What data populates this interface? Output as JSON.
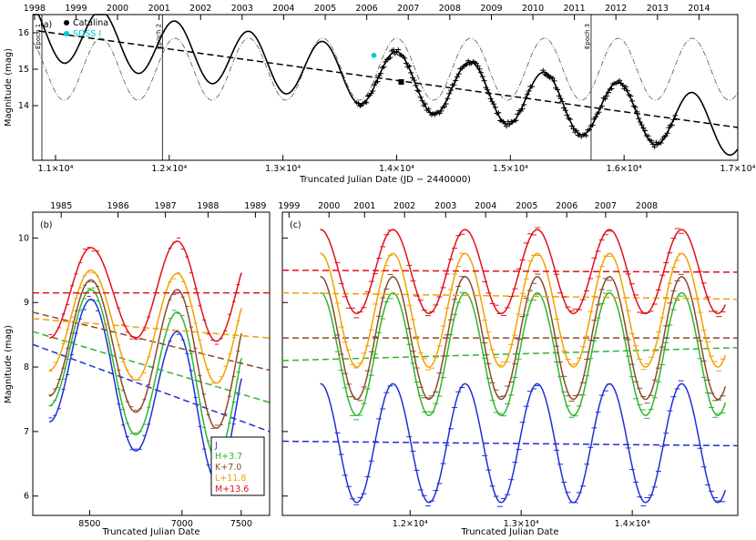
{
  "figure": {
    "colors": {
      "J": "#1f2fd6",
      "H": "#2fb52f",
      "K": "#8a4a2a",
      "L": "#f2a000",
      "M": "#e0101a",
      "catalina": "#000000",
      "sdss": "#00c8d8"
    }
  },
  "chart_data": [
    {
      "id": "a",
      "type": "line",
      "panel_label": "(a)",
      "xlabel": "Truncated Julian Date (JD − 2440000)",
      "ylabel": "Magnitude (mag)",
      "xlim": [
        10800,
        17000
      ],
      "ylim": [
        16.5,
        12.5
      ],
      "x_ticks": [
        {
          "value": 11000,
          "label": "1.1×10⁴"
        },
        {
          "value": 12000,
          "label": "1.2×10⁴"
        },
        {
          "value": 13000,
          "label": "1.3×10⁴"
        },
        {
          "value": 14000,
          "label": "1.4×10⁴"
        },
        {
          "value": 15000,
          "label": "1.5×10⁴"
        },
        {
          "value": 16000,
          "label": "1.6×10⁴"
        },
        {
          "value": 17000,
          "label": "1.7×10⁴"
        }
      ],
      "y_ticks": [
        {
          "value": 14,
          "label": "14"
        },
        {
          "value": 15,
          "label": "15"
        },
        {
          "value": 16,
          "label": "16"
        }
      ],
      "top_years": [
        {
          "year": "1998",
          "value": 10815
        },
        {
          "year": "1999",
          "value": 11180
        },
        {
          "year": "2000",
          "value": 11545
        },
        {
          "year": "2001",
          "value": 11911
        },
        {
          "year": "2002",
          "value": 12276
        },
        {
          "year": "2003",
          "value": 12641
        },
        {
          "year": "2004",
          "value": 13006
        },
        {
          "year": "2005",
          "value": 13372
        },
        {
          "year": "2006",
          "value": 13737
        },
        {
          "year": "2007",
          "value": 14102
        },
        {
          "year": "2008",
          "value": 14467
        },
        {
          "year": "2009",
          "value": 14833
        },
        {
          "year": "2010",
          "value": 15198
        },
        {
          "year": "2011",
          "value": 15563
        },
        {
          "year": "2012",
          "value": 15928
        },
        {
          "year": "2013",
          "value": 16294
        },
        {
          "year": "2014",
          "value": 16659
        }
      ],
      "epochs": [
        {
          "label": "Epoch 1",
          "value": 10880
        },
        {
          "label": "Epoch 2",
          "value": 11940
        },
        {
          "label": "Epoch 3",
          "value": 15710
        }
      ],
      "legend": [
        {
          "label": "Catalina",
          "color_key": "catalina"
        },
        {
          "label": "SDSS I",
          "color_key": "sdss"
        }
      ],
      "model": {
        "period_days": 650,
        "amplitude_mag": 0.75,
        "phase_day": 11400,
        "trend_start": [
          10850,
          16.05
        ],
        "trend_end": [
          17000,
          13.4
        ]
      },
      "sdss_point": {
        "x": 13800,
        "y": 15.38
      }
    },
    {
      "id": "b",
      "type": "line",
      "panel_label": "(b)",
      "xlabel": "Truncated Julian Date",
      "ylabel": "Magnitude (mag)",
      "xlim": [
        8050,
        7900
      ],
      "ylim": [
        10.4,
        5.7
      ],
      "x_ticks": [
        {
          "value": 8500,
          "label": "8500"
        },
        {
          "value": 7000,
          "label": "7000"
        },
        {
          "value": 7500,
          "label": "7500"
        }
      ],
      "y_ticks": [
        {
          "value": 6,
          "label": "6"
        },
        {
          "value": 7,
          "label": "7"
        },
        {
          "value": 8,
          "label": "8"
        },
        {
          "value": 9,
          "label": "9"
        },
        {
          "value": 10,
          "label": "10"
        }
      ],
      "top_years": [
        {
          "year": "1985",
          "value": 8250
        },
        {
          "year": "1986",
          "value": 8550
        },
        {
          "year": "1987",
          "value": 6870
        },
        {
          "year": "1988",
          "value": 7200
        },
        {
          "year": "1989",
          "value": 7580
        }
      ],
      "legend": [
        {
          "label": "J",
          "color_key": "J"
        },
        {
          "label": "H+3.7",
          "color_key": "H"
        },
        {
          "label": "K+7.0",
          "color_key": "K"
        },
        {
          "label": "L+11.8",
          "color_key": "L"
        },
        {
          "label": "M+13.6",
          "color_key": "M"
        }
      ],
      "series": [
        {
          "name": "J",
          "color_key": "J",
          "maxima": [
            7.15,
            6.7,
            6.25
          ],
          "minima": [
            9.05,
            8.55
          ],
          "trend": [
            8.35,
            7.0
          ]
        },
        {
          "name": "H+3.7",
          "color_key": "H",
          "maxima": [
            7.4,
            6.95,
            6.6
          ],
          "minima": [
            9.2,
            8.85
          ],
          "trend": [
            8.55,
            7.45
          ]
        },
        {
          "name": "K+7.0",
          "color_key": "K",
          "maxima": [
            7.55,
            7.3,
            7.05
          ],
          "minima": [
            9.35,
            9.2
          ],
          "trend": [
            8.85,
            7.95
          ]
        },
        {
          "name": "L+11.8",
          "color_key": "L",
          "maxima": [
            7.95,
            7.8,
            7.75
          ],
          "minima": [
            9.5,
            9.45
          ],
          "trend": [
            8.75,
            8.45
          ]
        },
        {
          "name": "M+13.6",
          "color_key": "M",
          "maxima": [
            8.45,
            8.45,
            8.4
          ],
          "minima": [
            9.85,
            9.95
          ],
          "trend": [
            9.15,
            9.15
          ]
        }
      ]
    },
    {
      "id": "c",
      "type": "line",
      "panel_label": "(c)",
      "xlabel": "Truncated Julian Date",
      "xlim": [
        10850,
        14950
      ],
      "ylim": [
        10.4,
        5.7
      ],
      "x_ticks": [
        {
          "value": 12000,
          "label": "1.2×10⁴"
        },
        {
          "value": 13000,
          "label": "1.3×10⁴"
        },
        {
          "value": 14000,
          "label": "1.4×10⁴"
        }
      ],
      "top_years": [
        {
          "year": "1999",
          "value": 10910
        },
        {
          "year": "2000",
          "value": 11270
        },
        {
          "year": "2001",
          "value": 11590
        },
        {
          "year": "2002",
          "value": 11950
        },
        {
          "year": "2003",
          "value": 12320
        },
        {
          "year": "2004",
          "value": 12680
        },
        {
          "year": "2005",
          "value": 13050
        },
        {
          "year": "2006",
          "value": 13410
        },
        {
          "year": "2007",
          "value": 13760
        },
        {
          "year": "2008",
          "value": 14130
        }
      ],
      "model": {
        "period_days": 650,
        "phase_day": 11520,
        "t_start": 11190,
        "t_end": 14840
      },
      "series": [
        {
          "name": "J",
          "color_key": "J",
          "mean": 6.82,
          "amplitude": 0.92,
          "trend": [
            6.85,
            6.78
          ]
        },
        {
          "name": "H+3.7",
          "color_key": "H",
          "mean": 8.2,
          "amplitude": 0.95,
          "trend": [
            8.1,
            8.3
          ]
        },
        {
          "name": "K+7.0",
          "color_key": "K",
          "mean": 8.45,
          "amplitude": 0.95,
          "trend": [
            8.45,
            8.45
          ]
        },
        {
          "name": "L+11.8",
          "color_key": "L",
          "mean": 8.88,
          "amplitude": 0.88,
          "trend": [
            9.15,
            9.05
          ]
        },
        {
          "name": "M+13.6",
          "color_key": "M",
          "mean": 9.48,
          "amplitude": 0.65,
          "trend": [
            9.5,
            9.47
          ]
        }
      ]
    }
  ]
}
